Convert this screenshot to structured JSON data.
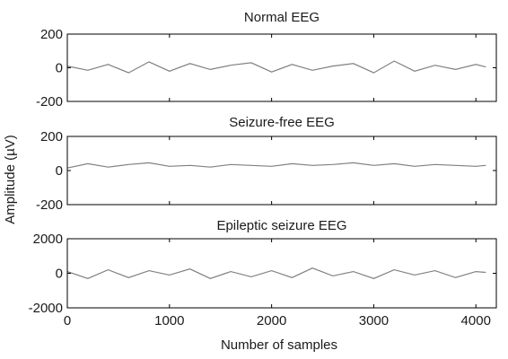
{
  "figure": {
    "ylabel": "Amplitude (µV)",
    "xlabel": "Number of samples"
  },
  "chart_data": [
    {
      "type": "line",
      "title": "Normal EEG",
      "xlabel": "",
      "ylabel": "",
      "xlim": [
        0,
        4200
      ],
      "ylim": [
        -200,
        200
      ],
      "x_ticks": [
        0,
        1000,
        2000,
        3000,
        4000
      ],
      "y_ticks": [
        200,
        0,
        -200
      ],
      "y_tick_labels": [
        "200",
        "0",
        "-200"
      ],
      "grid": false,
      "series": [
        {
          "color": "#808080",
          "x": [
            0,
            200,
            400,
            600,
            800,
            1000,
            1200,
            1400,
            1600,
            1800,
            2000,
            2200,
            2400,
            2600,
            2800,
            3000,
            3200,
            3400,
            3600,
            3800,
            4000,
            4097
          ],
          "values": [
            10,
            -15,
            20,
            -30,
            35,
            -20,
            25,
            -10,
            15,
            30,
            -25,
            20,
            -15,
            10,
            25,
            -30,
            40,
            -20,
            15,
            -10,
            20,
            5
          ]
        }
      ]
    },
    {
      "type": "line",
      "title": "Seizure-free EEG",
      "xlabel": "",
      "ylabel": "",
      "xlim": [
        0,
        4200
      ],
      "ylim": [
        -200,
        200
      ],
      "x_ticks": [
        0,
        1000,
        2000,
        3000,
        4000
      ],
      "y_ticks": [
        200,
        0,
        -200
      ],
      "y_tick_labels": [
        "200",
        "0",
        "-200"
      ],
      "grid": false,
      "series": [
        {
          "color": "#808080",
          "x": [
            0,
            200,
            400,
            600,
            800,
            1000,
            1200,
            1400,
            1600,
            1800,
            2000,
            2200,
            2400,
            2600,
            2800,
            3000,
            3200,
            3400,
            3600,
            3800,
            4000,
            4097
          ],
          "values": [
            15,
            40,
            20,
            35,
            45,
            25,
            30,
            20,
            35,
            30,
            25,
            40,
            30,
            35,
            45,
            30,
            40,
            25,
            35,
            30,
            25,
            30
          ]
        }
      ]
    },
    {
      "type": "line",
      "title": "Epileptic seizure EEG",
      "xlabel": "Number of samples",
      "ylabel": "",
      "xlim": [
        0,
        4200
      ],
      "ylim": [
        -2000,
        2000
      ],
      "x_ticks": [
        0,
        1000,
        2000,
        3000,
        4000
      ],
      "x_tick_labels": [
        "0",
        "1000",
        "2000",
        "3000",
        "4000"
      ],
      "y_ticks": [
        2000,
        0,
        -2000
      ],
      "y_tick_labels": [
        "2000",
        "0",
        "-2000"
      ],
      "grid": false,
      "series": [
        {
          "color": "#808080",
          "x": [
            0,
            200,
            400,
            600,
            800,
            1000,
            1200,
            1400,
            1600,
            1800,
            2000,
            2200,
            2400,
            2600,
            2800,
            3000,
            3200,
            3400,
            3600,
            3800,
            4000,
            4097
          ],
          "values": [
            100,
            -300,
            200,
            -250,
            150,
            -100,
            250,
            -300,
            100,
            -200,
            150,
            -250,
            300,
            -150,
            100,
            -300,
            200,
            -100,
            150,
            -250,
            100,
            50
          ]
        }
      ]
    }
  ]
}
